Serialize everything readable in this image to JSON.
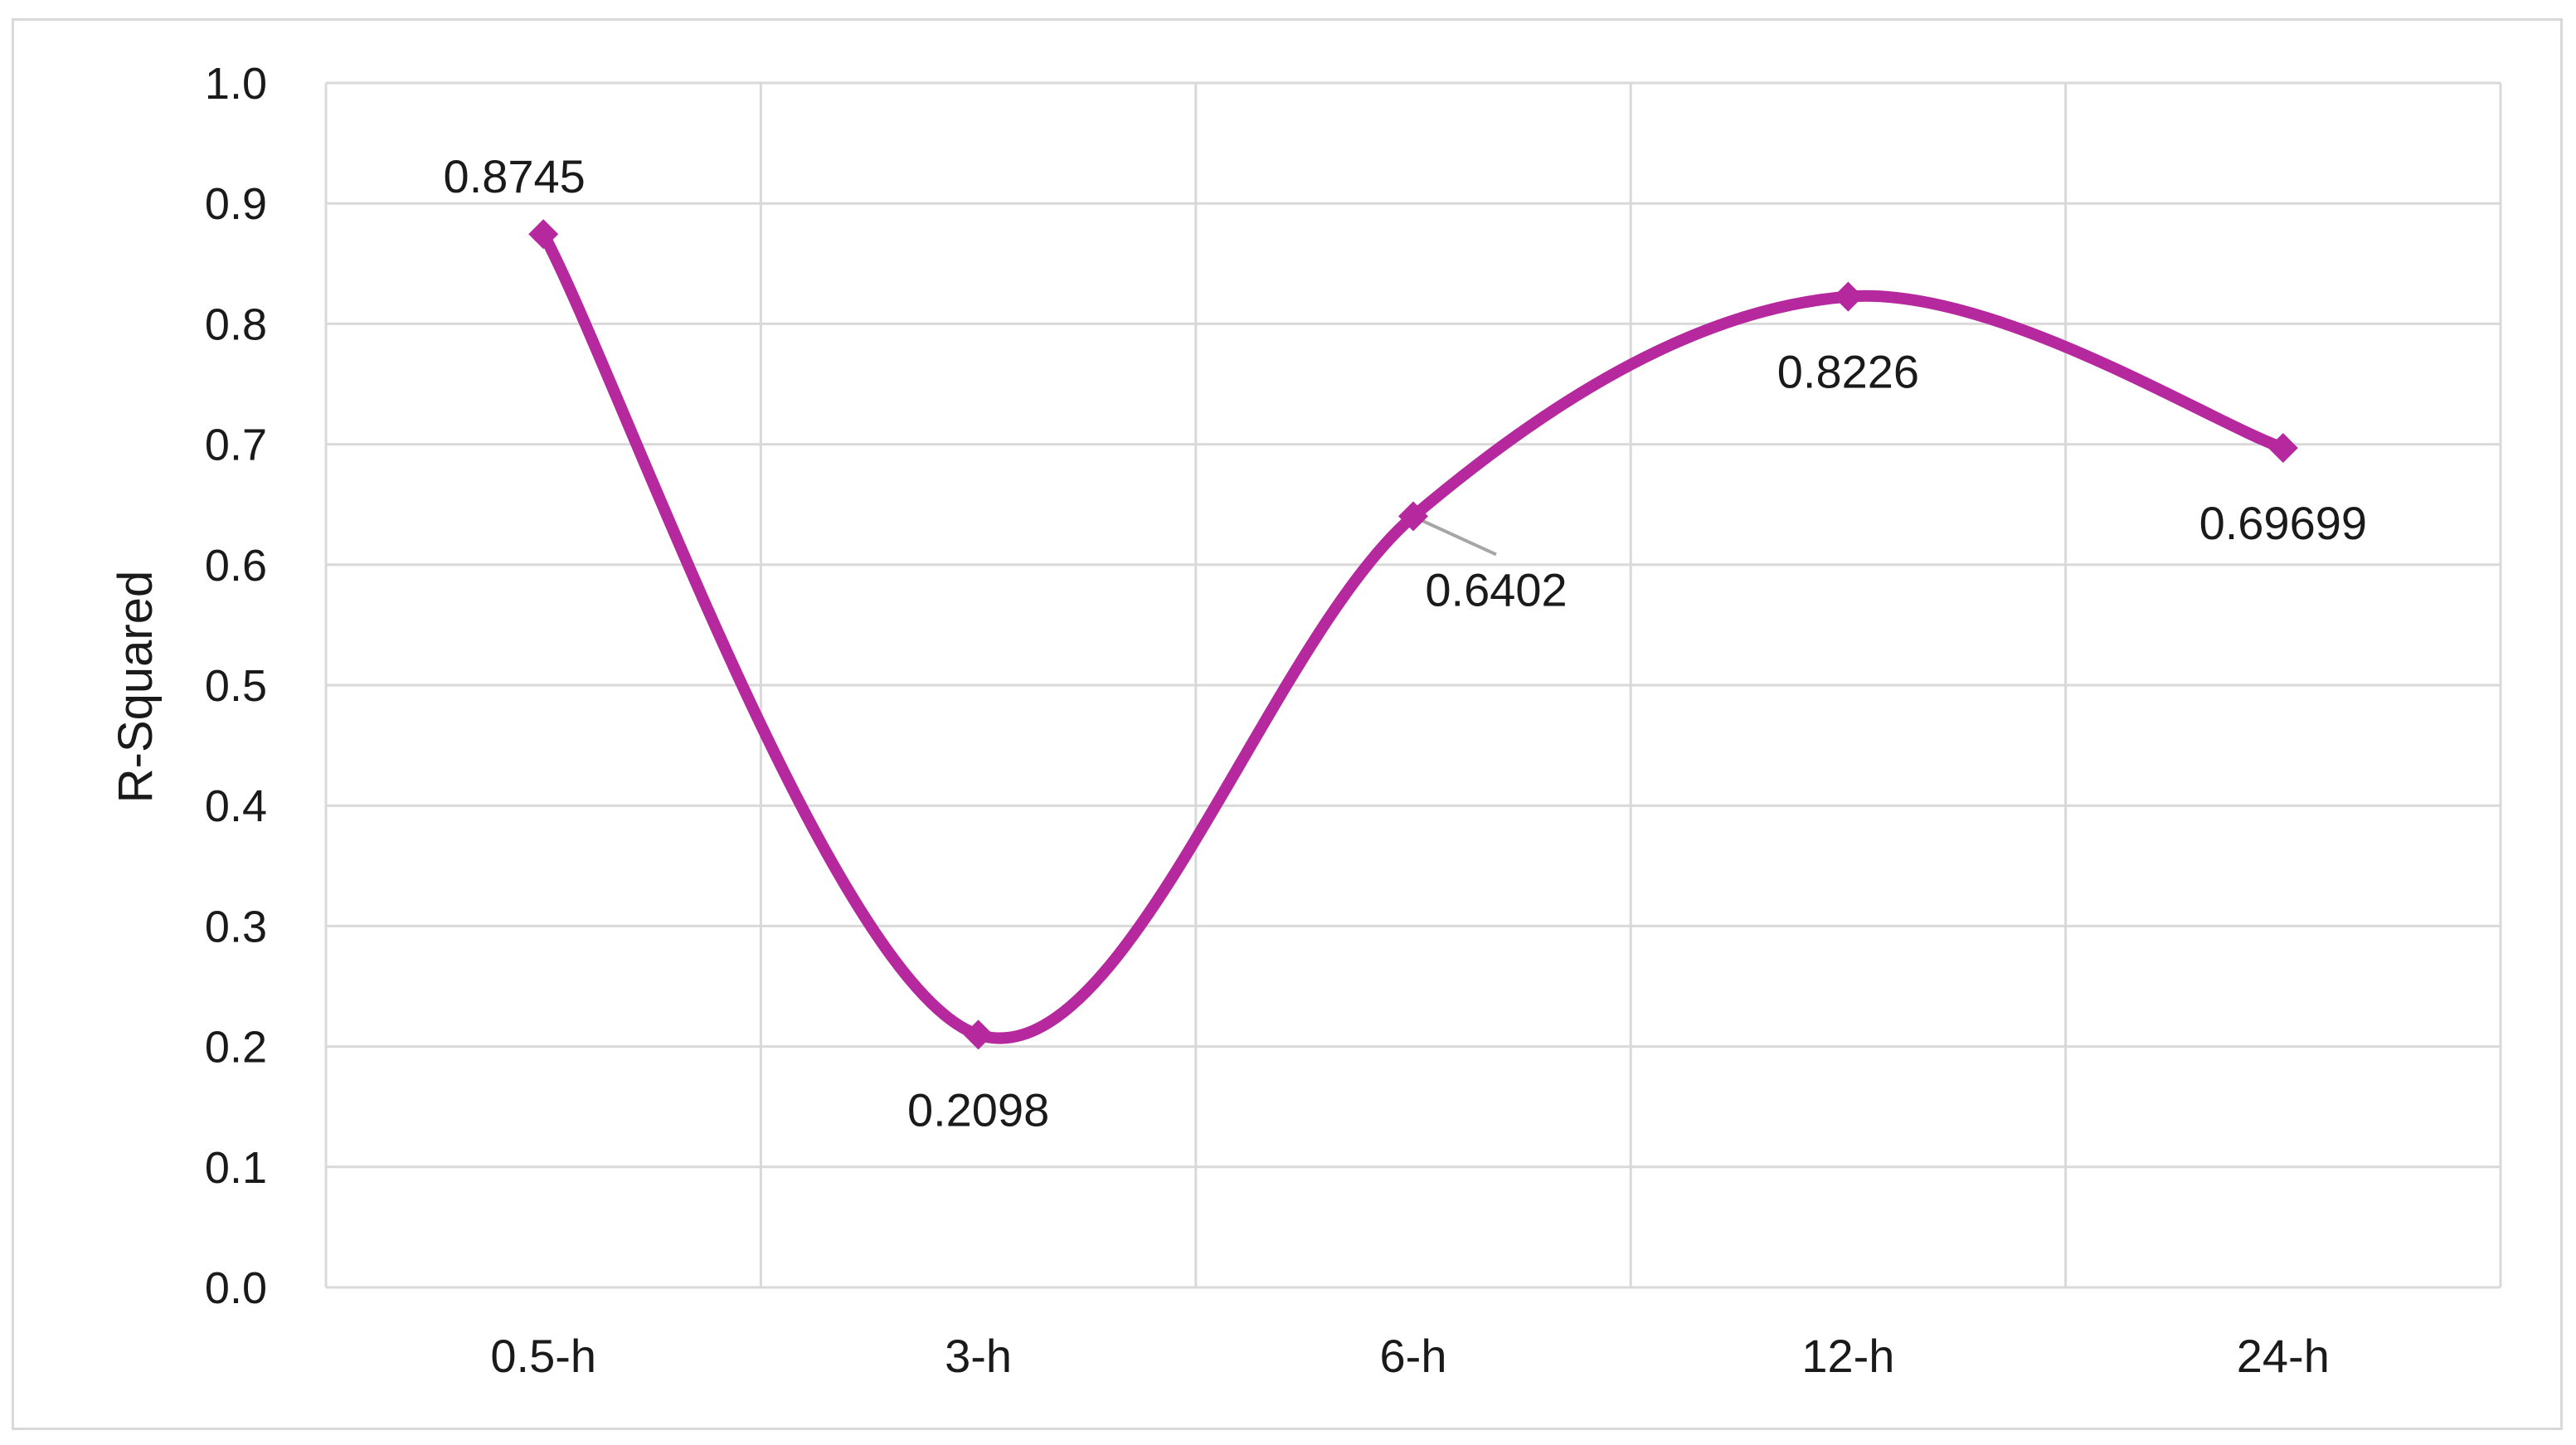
{
  "chart_data": {
    "type": "line",
    "smooth": true,
    "categories": [
      "0.5-h",
      "3-h",
      "6-h",
      "12-h",
      "24-h"
    ],
    "series": [
      {
        "values": [
          0.8745,
          0.2098,
          0.6402,
          0.8226,
          0.69699
        ],
        "data_labels": [
          "0.8745",
          "0.2098",
          "0.6402",
          "0.8226",
          "0.69699"
        ],
        "color": "#b5289e",
        "marker": "diamond"
      }
    ],
    "y_ticks": [
      "0.0",
      "0.1",
      "0.2",
      "0.3",
      "0.4",
      "0.5",
      "0.6",
      "0.7",
      "0.8",
      "0.9",
      "1.0"
    ],
    "ylabel": "R-Squared",
    "xlabel": "",
    "ylim": [
      0,
      1.0
    ],
    "grid": true,
    "legend": "none"
  }
}
